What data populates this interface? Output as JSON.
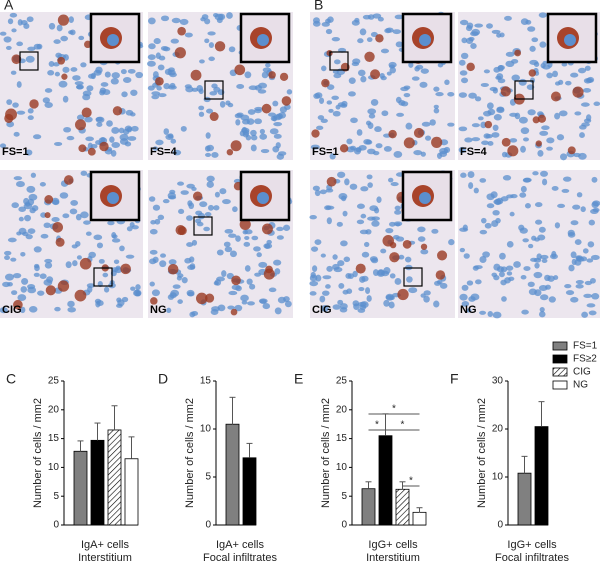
{
  "panels": [
    {
      "label": "A",
      "tiles": [
        "FS=1",
        "FS=4",
        "CIG",
        "NG"
      ]
    },
    {
      "label": "B",
      "tiles": [
        "FS=1",
        "FS=4",
        "CIG",
        "NG"
      ]
    }
  ],
  "legend": [
    {
      "name": "FS=1",
      "fill": "#808080"
    },
    {
      "name": "FS≥2",
      "fill": "#000000"
    },
    {
      "name": "CIG",
      "fill": "hatch"
    },
    {
      "name": "NG",
      "fill": "#ffffff"
    }
  ],
  "chart_data": [
    {
      "type": "bar",
      "panel": "C",
      "ylabel": "Number of cells / mm2",
      "xlabel": [
        "IgA+ cells",
        "Interstitium"
      ],
      "values": [
        12.8,
        14.7,
        16.5,
        11.5
      ],
      "errors": [
        1.8,
        3.0,
        4.2,
        3.8
      ],
      "fills": [
        "#808080",
        "#000000",
        "hatch",
        "#ffffff"
      ],
      "ylim": [
        0,
        25
      ],
      "yticks": [
        0,
        5,
        10,
        15,
        20,
        25
      ]
    },
    {
      "type": "bar",
      "panel": "D",
      "ylabel": "Number of cells / mm2",
      "xlabel": [
        "IgA+ cells",
        "Focal infiltrates"
      ],
      "values": [
        10.5,
        7.0
      ],
      "errors": [
        2.8,
        1.5
      ],
      "fills": [
        "#808080",
        "#000000"
      ],
      "ylim": [
        0,
        15
      ],
      "yticks": [
        0,
        5,
        10,
        15
      ]
    },
    {
      "type": "bar",
      "panel": "E",
      "ylabel": "Number of cells / mm2",
      "xlabel": [
        "IgG+ cells",
        "Interstitium"
      ],
      "values": [
        6.3,
        15.5,
        6.2,
        2.2
      ],
      "errors": [
        1.2,
        3.8,
        1.3,
        0.8
      ],
      "fills": [
        "#808080",
        "#000000",
        "hatch",
        "#ffffff"
      ],
      "ylim": [
        0,
        25
      ],
      "yticks": [
        0,
        5,
        10,
        15,
        20,
        25
      ],
      "annotations": [
        {
          "text": "*",
          "pair": [
            0,
            3
          ]
        },
        {
          "text": "*",
          "pair": [
            0,
            1
          ]
        },
        {
          "text": "*",
          "pair": [
            1,
            3
          ]
        },
        {
          "text": "*",
          "pair": [
            2,
            3
          ]
        }
      ]
    },
    {
      "type": "bar",
      "panel": "F",
      "ylabel": "Number of cells / mm2",
      "xlabel": [
        "IgG+ cells",
        "Focal infiltrates"
      ],
      "values": [
        10.8,
        20.5
      ],
      "errors": [
        3.5,
        5.2
      ],
      "fills": [
        "#808080",
        "#000000"
      ],
      "ylim": [
        0,
        30
      ],
      "yticks": [
        0,
        10,
        20,
        30
      ]
    }
  ]
}
